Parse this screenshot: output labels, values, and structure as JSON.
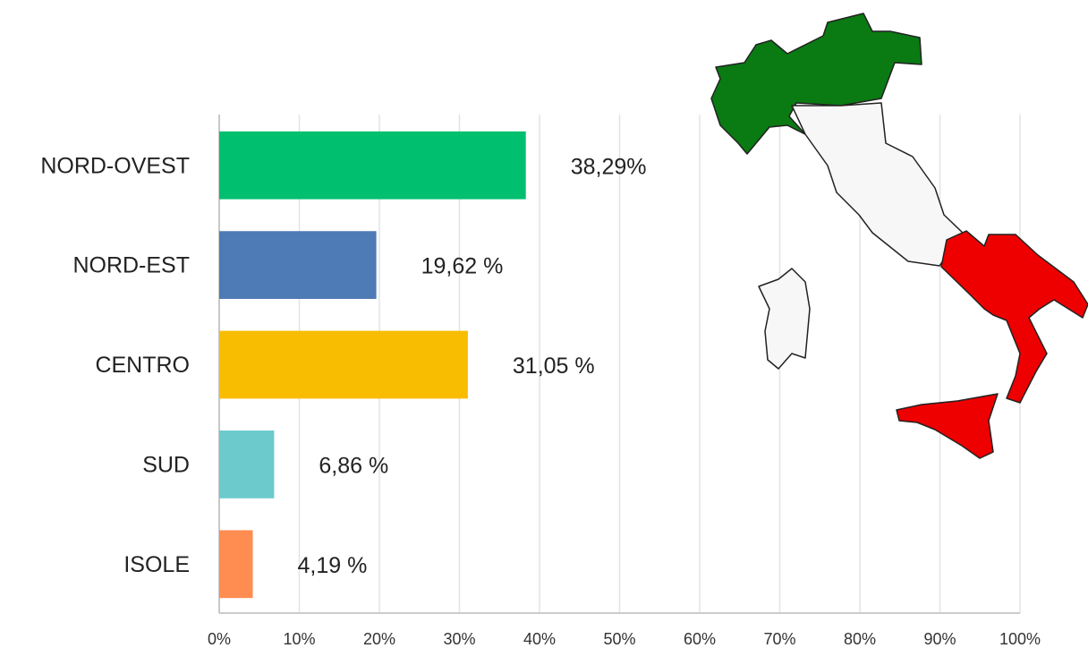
{
  "chart_data": {
    "type": "bar",
    "orientation": "horizontal",
    "categories": [
      "NORD-OVEST",
      "NORD-EST",
      "CENTRO",
      "SUD",
      "ISOLE"
    ],
    "values": [
      38.29,
      19.62,
      31.05,
      6.86,
      4.19
    ],
    "value_labels": [
      "38,29%",
      "19,62 %",
      "31,05 %",
      "6,86 %",
      "4,19 %"
    ],
    "colors": [
      "#00bf6f",
      "#4e7ab5",
      "#f8bd00",
      "#6ccacc",
      "#ff8c50"
    ],
    "xlim": [
      0,
      100
    ],
    "xticks": [
      {
        "value": 0,
        "label": "0%"
      },
      {
        "value": 10,
        "label": "10%"
      },
      {
        "value": 20,
        "label": "20%"
      },
      {
        "value": 30,
        "label": "30%"
      },
      {
        "value": 40,
        "label": "40%"
      },
      {
        "value": 50,
        "label": "50%"
      },
      {
        "value": 60,
        "label": "60%"
      },
      {
        "value": 70,
        "label": "70%"
      },
      {
        "value": 80,
        "label": "80%"
      },
      {
        "value": 90,
        "label": "90%"
      },
      {
        "value": 100,
        "label": "100%"
      }
    ],
    "grid": true
  }
}
